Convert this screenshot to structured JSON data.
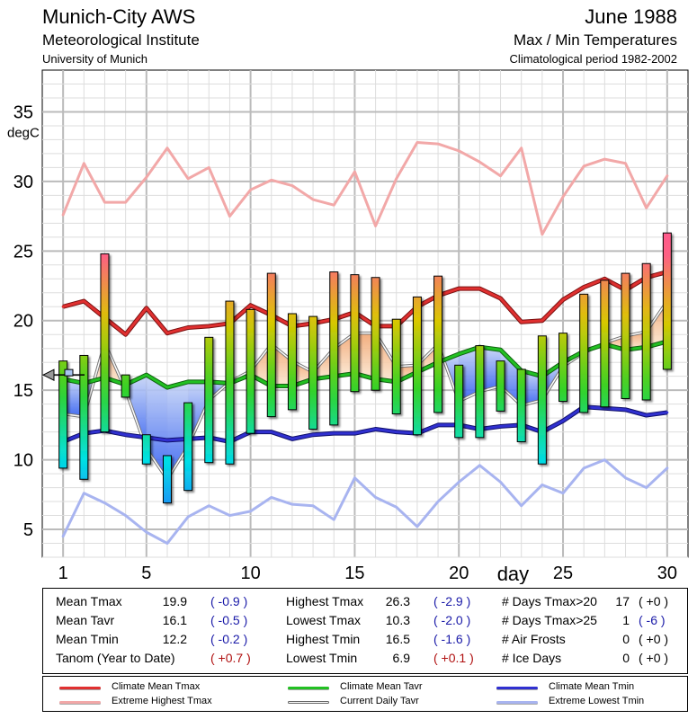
{
  "header": {
    "station": "Munich-City AWS",
    "institute": "Meteorological Institute",
    "university": "University of Munich",
    "month": "June 1988",
    "subtitle": "Max / Min Temperatures",
    "period": "Climatological period 1982-2002"
  },
  "chart_data": {
    "type": "bar",
    "ylabel": "degC",
    "xlabel": "day",
    "ylim": [
      3,
      38
    ],
    "xlim": [
      0,
      31
    ],
    "yticks": [
      5,
      10,
      15,
      20,
      25,
      30,
      35
    ],
    "xticks": [
      1,
      5,
      10,
      15,
      20,
      25,
      30
    ],
    "grid": true,
    "days": [
      1,
      2,
      3,
      4,
      5,
      6,
      7,
      8,
      9,
      10,
      11,
      12,
      13,
      14,
      15,
      16,
      17,
      18,
      19,
      20,
      21,
      22,
      23,
      24,
      25,
      26,
      27,
      28,
      29,
      30
    ],
    "tmax": [
      17.1,
      17.5,
      24.8,
      16.1,
      11.8,
      10.3,
      14.1,
      18.8,
      21.4,
      20.8,
      23.4,
      20.5,
      20.3,
      23.5,
      23.3,
      23.1,
      20.1,
      21.7,
      23.2,
      16.8,
      18.2,
      17.1,
      16.5,
      18.9,
      19.1,
      21.9,
      22.9,
      23.4,
      24.1,
      26.3
    ],
    "tmin": [
      9.4,
      8.6,
      12.0,
      14.5,
      9.7,
      6.9,
      7.8,
      9.8,
      9.7,
      11.9,
      13.1,
      13.6,
      12.2,
      12.5,
      14.9,
      15.0,
      13.3,
      11.8,
      13.4,
      11.6,
      11.6,
      13.5,
      11.3,
      9.7,
      14.2,
      13.4,
      13.8,
      14.4,
      14.3,
      16.5
    ],
    "tavr": [
      13.3,
      13.1,
      18.4,
      15.0,
      10.8,
      8.6,
      11.0,
      14.3,
      15.6,
      16.4,
      18.3,
      17.1,
      16.3,
      18.0,
      19.1,
      19.1,
      16.7,
      16.8,
      18.3,
      14.2,
      14.9,
      15.3,
      13.9,
      14.3,
      16.7,
      17.7,
      18.4,
      18.9,
      19.2,
      21.4
    ],
    "clim_mean_tmax": [
      21.0,
      21.4,
      20.2,
      19.0,
      20.9,
      19.1,
      19.5,
      19.6,
      19.8,
      21.1,
      20.4,
      19.6,
      19.8,
      20.1,
      20.6,
      19.6,
      19.6,
      21.0,
      21.8,
      22.3,
      22.3,
      21.6,
      19.9,
      20.0,
      21.5,
      22.4,
      23.0,
      22.2,
      23.1,
      23.5
    ],
    "clim_mean_tavr": [
      15.8,
      15.5,
      15.9,
      15.4,
      16.1,
      15.2,
      15.6,
      15.6,
      15.5,
      16.1,
      15.3,
      15.3,
      15.8,
      16.0,
      16.2,
      15.8,
      15.6,
      16.3,
      17.0,
      17.6,
      18.1,
      17.9,
      16.4,
      16.0,
      17.0,
      17.8,
      18.3,
      17.9,
      18.1,
      18.5
    ],
    "clim_mean_tmin": [
      11.3,
      11.9,
      12.1,
      11.8,
      11.6,
      11.4,
      11.5,
      11.6,
      11.3,
      12.0,
      12.0,
      11.5,
      11.8,
      11.9,
      11.9,
      12.2,
      12.0,
      11.9,
      12.5,
      12.5,
      12.2,
      12.4,
      12.5,
      12.0,
      12.8,
      13.8,
      13.7,
      13.6,
      13.2,
      13.4
    ],
    "extreme_highest_tmax": [
      27.6,
      31.3,
      28.5,
      28.5,
      30.3,
      32.4,
      30.2,
      31.0,
      27.5,
      29.4,
      30.1,
      29.7,
      28.7,
      28.3,
      30.7,
      26.8,
      30.2,
      32.8,
      32.7,
      32.2,
      31.4,
      30.4,
      32.4,
      26.2,
      28.9,
      31.1,
      31.6,
      31.3,
      28.1,
      30.4
    ],
    "extreme_lowest_tmin": [
      4.5,
      7.6,
      6.9,
      6.0,
      4.8,
      4.0,
      5.9,
      6.7,
      6.0,
      6.3,
      7.3,
      6.8,
      6.7,
      5.7,
      8.7,
      7.3,
      6.6,
      5.2,
      7.0,
      8.4,
      9.6,
      8.4,
      6.7,
      8.2,
      7.6,
      9.4,
      10.0,
      8.7,
      8.0,
      9.4
    ],
    "ytd_marker_value": 16.1
  },
  "stats": [
    {
      "label": "Mean Tmax",
      "value": "19.9",
      "anom": "( -0.9 )",
      "sign": "neg"
    },
    {
      "label": "Mean Tavr",
      "value": "16.1",
      "anom": "( -0.5 )",
      "sign": "neg"
    },
    {
      "label": "Mean Tmin",
      "value": "12.2",
      "anom": "( -0.2 )",
      "sign": "neg"
    },
    {
      "label": "Tanom (Year to Date)",
      "value": "",
      "anom": "( +0.7 )",
      "sign": "pos"
    },
    {
      "label": "Highest Tmax",
      "value": "26.3",
      "anom": "( -2.9 )",
      "sign": "neg"
    },
    {
      "label": "Lowest Tmax",
      "value": "10.3",
      "anom": "( -2.0 )",
      "sign": "neg"
    },
    {
      "label": "Highest Tmin",
      "value": "16.5",
      "anom": "( -1.6 )",
      "sign": "neg"
    },
    {
      "label": "Lowest Tmin",
      "value": "6.9",
      "anom": "( +0.1 )",
      "sign": "pos"
    },
    {
      "label": "# Days Tmax>20",
      "value": "17",
      "anom": "( +0 )",
      "sign": "zero"
    },
    {
      "label": "# Days Tmax>25",
      "value": "1",
      "anom": "( -6 )",
      "sign": "neg"
    },
    {
      "label": "# Air Frosts",
      "value": "0",
      "anom": "( +0 )",
      "sign": "zero"
    },
    {
      "label": "# Ice Days",
      "value": "0",
      "anom": "( +0 )",
      "sign": "zero"
    }
  ],
  "legend": [
    {
      "label": "Climate Mean Tmax",
      "color": "#e03030"
    },
    {
      "label": "Extreme Highest Tmax",
      "color": "#f2a8a8"
    },
    {
      "label": "Climate Mean Tavr",
      "color": "#22c022"
    },
    {
      "label": "Current Daily Tavr",
      "color": "#888888"
    },
    {
      "label": "Climate Mean Tmin",
      "color": "#3030d0"
    },
    {
      "label": "Extreme Lowest Tmin",
      "color": "#a8b4f0"
    }
  ]
}
